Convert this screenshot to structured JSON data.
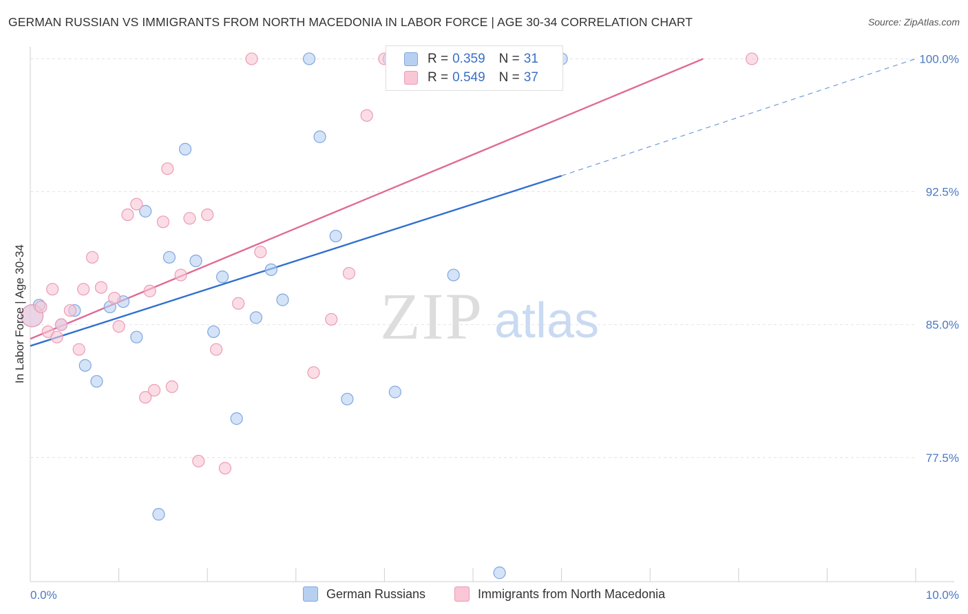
{
  "header": {
    "title": "GERMAN RUSSIAN VS IMMIGRANTS FROM NORTH MACEDONIA IN LABOR FORCE | AGE 30-34 CORRELATION CHART",
    "source": "Source: ZipAtlas.com"
  },
  "watermark": {
    "zip": "ZIP",
    "atlas": "atlas"
  },
  "legend_top": {
    "rows": [
      {
        "r_label": "R =",
        "r_value": "0.359",
        "n_label": "N =",
        "n_value": "31",
        "color": "#b7d0f2",
        "border": "#7ea6e0"
      },
      {
        "r_label": "R =",
        "r_value": "0.549",
        "n_label": "N =",
        "n_value": "37",
        "color": "#f9c6d5",
        "border": "#ee9ab4"
      }
    ]
  },
  "chart_data": {
    "type": "scatter",
    "title": "GERMAN RUSSIAN VS IMMIGRANTS FROM NORTH MACEDONIA IN LABOR FORCE | AGE 30-34 CORRELATION CHART",
    "xlabel": "",
    "ylabel": "In Labor Force | Age 30-34",
    "xlim": [
      0,
      10
    ],
    "ylim": [
      70.5,
      100.6
    ],
    "x_tick_labels": [
      "0.0%",
      "10.0%"
    ],
    "y_ticks": [
      77.5,
      85.0,
      92.5,
      100.0
    ],
    "y_tick_labels": [
      "77.5%",
      "85.0%",
      "92.5%",
      "100.0%"
    ],
    "grid": true,
    "legend_position": "top-center",
    "series": [
      {
        "name": "German Russians",
        "color": "#b7d0f2",
        "edge": "#7ea6e0",
        "line_color": "#2f6fcf",
        "trend": {
          "x0": 0.0,
          "y0": 83.8,
          "x1": 6.0,
          "y1": 93.4,
          "dashed_to_x": 10.0,
          "dashed_to_y": 100.0
        },
        "points": [
          [
            0.02,
            85.5
          ],
          [
            0.35,
            85.0
          ],
          [
            0.5,
            85.8
          ],
          [
            0.62,
            82.7
          ],
          [
            0.75,
            81.8
          ],
          [
            0.9,
            86.0
          ],
          [
            1.05,
            86.3
          ],
          [
            1.2,
            84.3
          ],
          [
            1.3,
            91.4
          ],
          [
            1.45,
            74.3
          ],
          [
            1.57,
            88.8
          ],
          [
            1.75,
            94.9
          ],
          [
            1.87,
            88.6
          ],
          [
            2.07,
            84.6
          ],
          [
            2.17,
            87.7
          ],
          [
            2.33,
            79.7
          ],
          [
            2.55,
            85.4
          ],
          [
            2.72,
            88.1
          ],
          [
            2.85,
            86.4
          ],
          [
            3.15,
            100.0
          ],
          [
            3.27,
            95.6
          ],
          [
            3.45,
            90.0
          ],
          [
            3.58,
            80.8
          ],
          [
            4.05,
            100.0
          ],
          [
            4.12,
            81.2
          ],
          [
            4.5,
            100.0
          ],
          [
            4.78,
            87.8
          ],
          [
            4.9,
            100.0
          ],
          [
            5.3,
            71.0
          ],
          [
            6.0,
            100.0
          ],
          [
            0.1,
            86.1
          ]
        ]
      },
      {
        "name": "Immigrants from North Macedonia",
        "color": "#f9c6d5",
        "edge": "#ee9ab4",
        "line_color": "#e06a95",
        "trend": {
          "x0": 0.0,
          "y0": 84.2,
          "x1": 7.6,
          "y1": 100.0
        },
        "points": [
          [
            0.02,
            85.5
          ],
          [
            0.12,
            86.0
          ],
          [
            0.2,
            84.6
          ],
          [
            0.25,
            87.0
          ],
          [
            0.3,
            84.3
          ],
          [
            0.35,
            85.0
          ],
          [
            0.45,
            85.8
          ],
          [
            0.55,
            83.6
          ],
          [
            0.6,
            87.0
          ],
          [
            0.7,
            88.8
          ],
          [
            0.8,
            87.1
          ],
          [
            0.95,
            86.5
          ],
          [
            1.0,
            84.9
          ],
          [
            1.1,
            91.2
          ],
          [
            1.2,
            91.8
          ],
          [
            1.3,
            80.9
          ],
          [
            1.35,
            86.9
          ],
          [
            1.4,
            81.3
          ],
          [
            1.5,
            90.8
          ],
          [
            1.55,
            93.8
          ],
          [
            1.6,
            81.5
          ],
          [
            1.7,
            87.8
          ],
          [
            1.8,
            91.0
          ],
          [
            1.9,
            77.3
          ],
          [
            2.0,
            91.2
          ],
          [
            2.1,
            83.6
          ],
          [
            2.2,
            76.9
          ],
          [
            2.35,
            86.2
          ],
          [
            2.5,
            100.0
          ],
          [
            2.6,
            89.1
          ],
          [
            3.2,
            82.3
          ],
          [
            3.4,
            85.3
          ],
          [
            3.6,
            87.9
          ],
          [
            3.8,
            96.8
          ],
          [
            4.0,
            100.0
          ],
          [
            4.5,
            100.0
          ],
          [
            8.15,
            100.0
          ]
        ]
      }
    ]
  },
  "legend_bottom": {
    "items": [
      {
        "label": "German Russians",
        "color": "#b7d0f2",
        "border": "#7ea6e0"
      },
      {
        "label": "Immigrants from North Macedonia",
        "color": "#f9c6d5",
        "border": "#ee9ab4"
      }
    ]
  }
}
